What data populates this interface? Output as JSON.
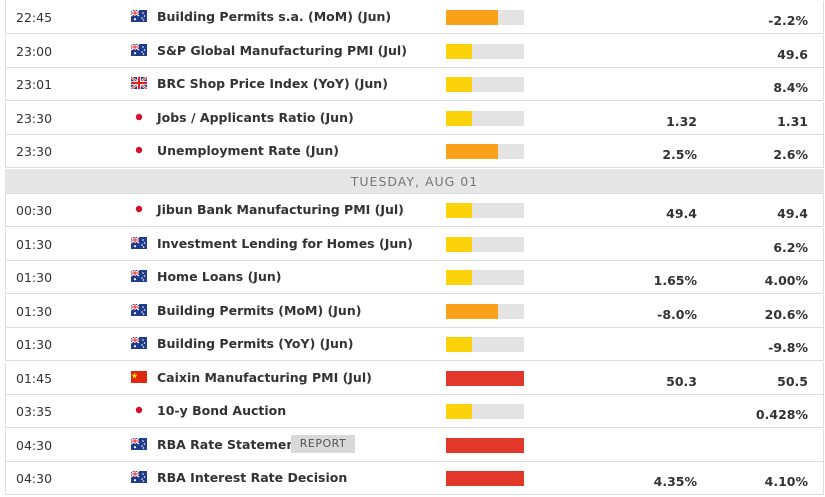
{
  "impact_colors": [
    "#fcd20b",
    "#f9a11b",
    "#e2382c"
  ],
  "rows": [
    {
      "time": "22:45",
      "event": "Building Permits s.a. (MoM) (Jun)",
      "impact": 2,
      "previous": "-2.2%"
    },
    {
      "time": "23:00",
      "event": "S&P Global Manufacturing PMI (Jul)",
      "impact": 1,
      "previous": "49.6"
    },
    {
      "time": "23:01",
      "event": "BRC Shop Price Index (YoY) (Jun)",
      "impact": 1,
      "previous": "8.4%"
    },
    {
      "time": "23:30",
      "event": "Jobs / Applicants Ratio (Jun)",
      "impact": 1,
      "consensus": "1.32",
      "previous": "1.31"
    },
    {
      "time": "23:30",
      "event": "Unemployment Rate (Jun)",
      "impact": 2,
      "consensus": "2.5%",
      "previous": "2.6%"
    },
    {
      "time": "00:30",
      "event": "Jibun Bank Manufacturing PMI (Jul)",
      "impact": 1,
      "consensus": "49.4",
      "previous": "49.4"
    },
    {
      "time": "01:30",
      "event": "Investment Lending for Homes (Jun)",
      "impact": 1,
      "previous": "6.2%"
    },
    {
      "time": "01:30",
      "event": "Home Loans (Jun)",
      "impact": 1,
      "consensus": "1.65%",
      "previous": "4.00%"
    },
    {
      "time": "01:30",
      "event": "Building Permits (MoM) (Jun)",
      "impact": 2,
      "consensus": "-8.0%",
      "previous": "20.6%"
    },
    {
      "time": "01:30",
      "event": "Building Permits (YoY) (Jun)",
      "impact": 1,
      "previous": "-9.8%"
    },
    {
      "time": "01:45",
      "event": "Caixin Manufacturing PMI (Jul)",
      "impact": 3,
      "consensus": "50.3",
      "previous": "50.5"
    },
    {
      "time": "03:35",
      "event": "10-y Bond Auction",
      "impact": 1,
      "previous": "0.428%"
    },
    {
      "time": "04:30",
      "event": "RBA Rate Statement",
      "tag": "REPORT",
      "impact": 3
    },
    {
      "time": "04:30",
      "event": "RBA Interest Rate Decision",
      "impact": 3,
      "consensus": "4.35%",
      "previous": "4.10%"
    }
  ],
  "separator": "TUESDAY, AUG 01"
}
